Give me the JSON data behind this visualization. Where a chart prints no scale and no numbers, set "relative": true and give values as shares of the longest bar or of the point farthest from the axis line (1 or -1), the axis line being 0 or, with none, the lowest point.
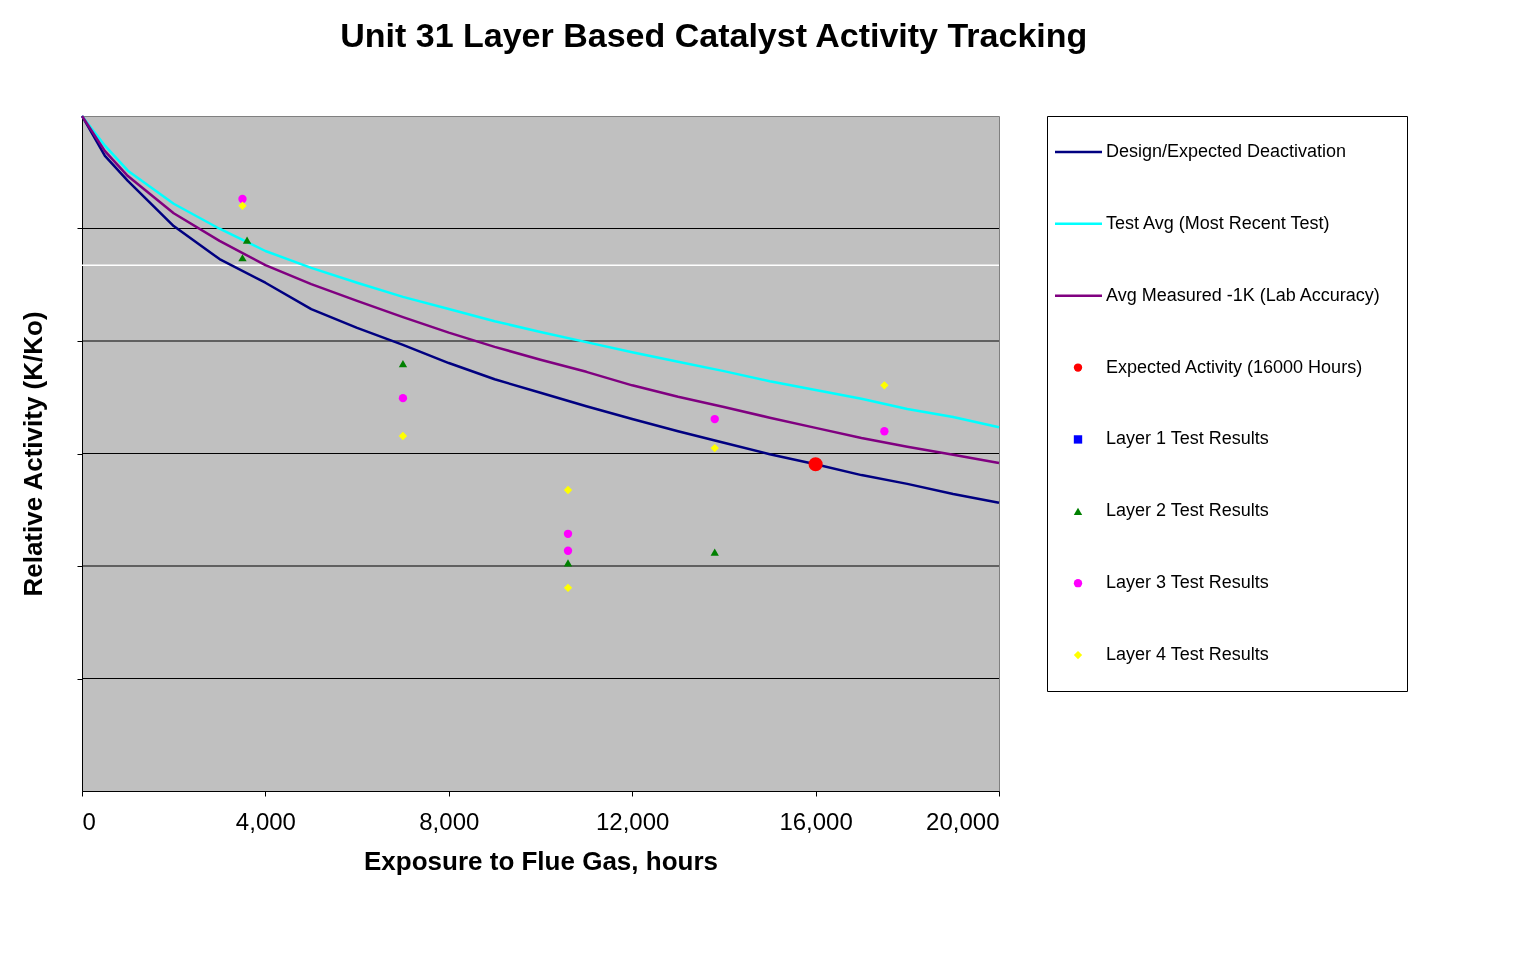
{
  "chart_data": {
    "type": "line",
    "title": "Unit 31 Layer Based Catalyst Activity Tracking",
    "xlabel": "Exposure to Flue Gas, hours",
    "ylabel": "Relative Activity (K/Ko)",
    "relative": true,
    "xlim": [
      0,
      20000
    ],
    "xticks": [
      0,
      {
        "value": 4000,
        "label": "4,000"
      },
      {
        "value": 8000,
        "label": "8,000"
      },
      {
        "value": 12000,
        "label": "12,000"
      },
      {
        "value": 16000,
        "label": "16,000"
      },
      {
        "value": 20000,
        "label": "20,000"
      }
    ],
    "grid": "y",
    "legend": "right",
    "ref_lines": [
      {
        "axis": "y",
        "value": 0.779,
        "color": "#ffffff"
      }
    ],
    "x": [
      0,
      500,
      1000,
      2000,
      3000,
      4000,
      5000,
      6000,
      7000,
      8000,
      9000,
      10000,
      11000,
      12000,
      13000,
      14000,
      15000,
      16000,
      17000,
      18000,
      19000,
      20000
    ],
    "series": [
      {
        "name": "Design/Expected Deactivation",
        "color": "#000080",
        "values": [
          1.0,
          0.941,
          0.904,
          0.837,
          0.788,
          0.753,
          0.714,
          0.686,
          0.661,
          0.634,
          0.61,
          0.59,
          0.57,
          0.551,
          0.533,
          0.516,
          0.499,
          0.484,
          0.468,
          0.455,
          0.44,
          0.427
        ]
      },
      {
        "name": "Test Avg (Most Recent Test)",
        "color": "#00ffff",
        "values": [
          1.0,
          0.956,
          0.919,
          0.87,
          0.833,
          0.8,
          0.775,
          0.753,
          0.732,
          0.714,
          0.696,
          0.68,
          0.665,
          0.65,
          0.636,
          0.622,
          0.607,
          0.594,
          0.581,
          0.566,
          0.554,
          0.539
        ]
      },
      {
        "name": "Avg Measured -1K (Lab Accuracy)",
        "color": "#800080",
        "values": [
          1.0,
          0.948,
          0.911,
          0.856,
          0.815,
          0.779,
          0.751,
          0.726,
          0.702,
          0.679,
          0.658,
          0.639,
          0.621,
          0.601,
          0.584,
          0.569,
          0.553,
          0.538,
          0.523,
          0.51,
          0.498,
          0.486
        ]
      },
      {
        "name": "Expected Activity (16000 Hours)",
        "type": "scatter",
        "marker": "circle",
        "color": "#ff0000",
        "x": [
          16000
        ],
        "values": [
          0.484
        ]
      },
      {
        "name": "Layer 1 Test Results",
        "type": "scatter",
        "marker": "square",
        "color": "#0000ff",
        "values": [
          null,
          null,
          null,
          null,
          null,
          null,
          null,
          null,
          null,
          null,
          null,
          null,
          null,
          null,
          null,
          null,
          null,
          null,
          null,
          null,
          null,
          null
        ]
      },
      {
        "name": "Layer 2 Test Results",
        "type": "scatter",
        "marker": "triangle",
        "color": "#008000",
        "x": [
          3500,
          3600,
          7000,
          10600,
          13800
        ],
        "values": [
          0.79,
          0.816,
          0.633,
          0.338,
          0.354
        ]
      },
      {
        "name": "Layer 3 Test Results",
        "type": "scatter",
        "marker": "circle",
        "color": "#ff00ff",
        "x": [
          3500,
          7000,
          10600,
          10600,
          13800,
          17500
        ],
        "values": [
          0.877,
          0.582,
          0.381,
          0.356,
          0.551,
          0.533
        ]
      },
      {
        "name": "Layer 4 Test Results",
        "type": "scatter",
        "marker": "diamond",
        "color": "#ffff00",
        "x": [
          3500,
          7000,
          10600,
          10600,
          13800,
          17500
        ],
        "values": [
          0.867,
          0.526,
          0.446,
          0.301,
          0.508,
          0.601
        ]
      }
    ]
  }
}
